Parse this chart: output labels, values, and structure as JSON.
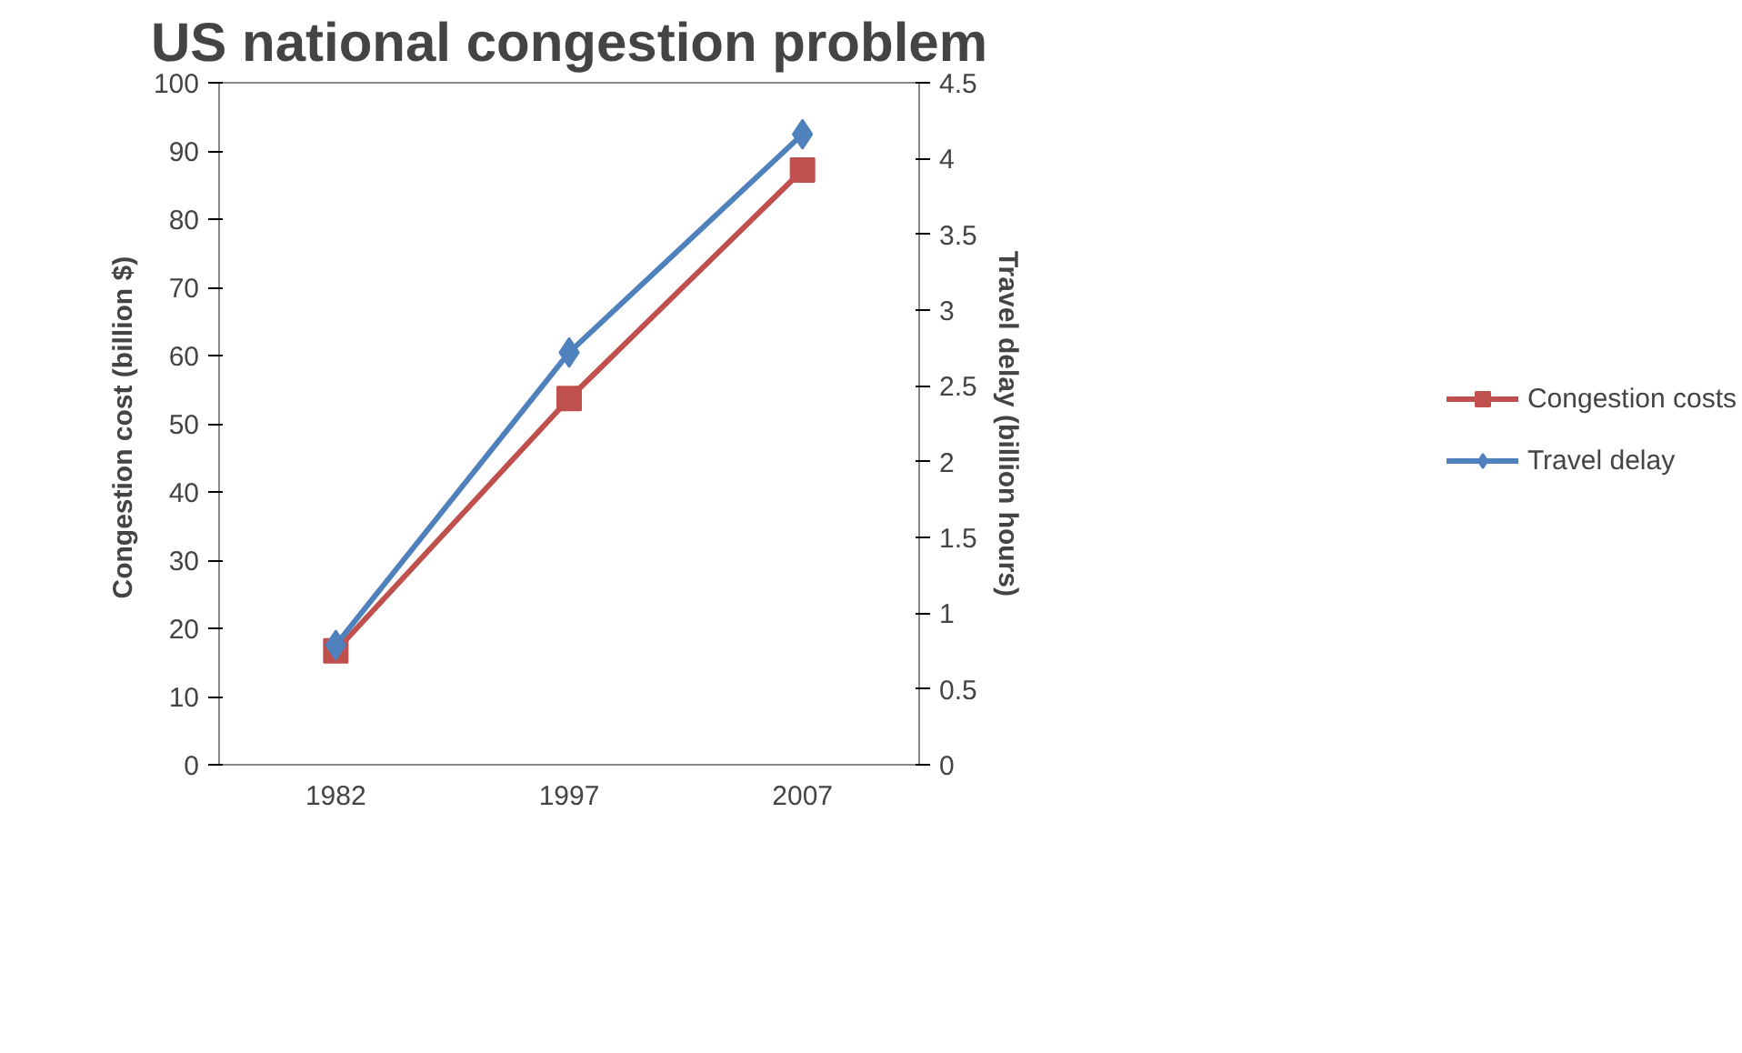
{
  "chart_data": {
    "type": "line",
    "title": "US national congestion problem",
    "ylabel": "Congestion cost  (billion $)",
    "y2label": "Travel delay (billion hours)",
    "categories": [
      "1982",
      "1997",
      "2007"
    ],
    "series": [
      {
        "name": "Congestion costs",
        "color": "#c0504d",
        "marker": "square",
        "values": [
          16.7,
          53.7,
          87.2
        ]
      },
      {
        "name": "Travel delay",
        "color": "#4f81bd",
        "marker": "diamond",
        "axis": "y2",
        "values": [
          0.79,
          2.72,
          4.16
        ]
      }
    ],
    "ylim": [
      0,
      100
    ],
    "yticks": [
      0,
      10,
      20,
      30,
      40,
      50,
      60,
      70,
      80,
      90,
      100
    ],
    "y2lim": [
      0,
      4.5
    ],
    "y2ticks": [
      0,
      0.5,
      1,
      1.5,
      2,
      2.5,
      3,
      3.5,
      4,
      4.5
    ],
    "grid": false,
    "legend": "right"
  }
}
